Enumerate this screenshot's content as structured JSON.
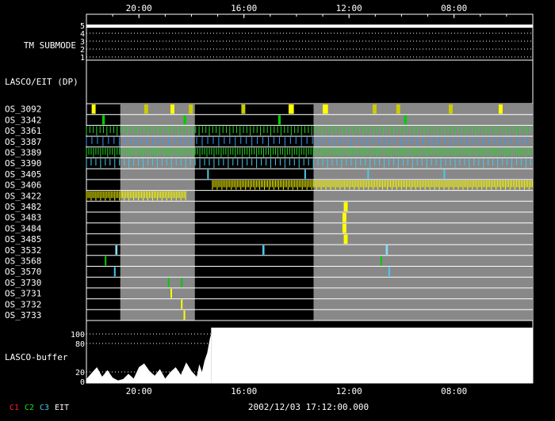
{
  "chart_data": {
    "type": "timeline",
    "footer_time": "2002/12/03 17:12:00.000",
    "x_axis": {
      "direction": "decreasing-left-to-right",
      "range_hours": [
        22,
        5
      ],
      "ticks": [
        {
          "label": "20:00",
          "hour": 20
        },
        {
          "label": "16:00",
          "hour": 16
        },
        {
          "label": "12:00",
          "hour": 12
        },
        {
          "label": "08:00",
          "hour": 8
        }
      ]
    },
    "tm_submode": {
      "label": "TM SUBMODE",
      "ticks": [
        "5",
        "4",
        "3",
        "2",
        "1"
      ],
      "value": 5
    },
    "lasco_eit": {
      "label": "LASCO/EIT (DP)"
    },
    "gray_bands_hours": [
      [
        20.71,
        17.87
      ],
      [
        13.35,
        5.0
      ]
    ],
    "os_rows": [
      {
        "name": "OS_3092",
        "events": [
          [
            21.8,
            0.15,
            "#ffff00"
          ],
          [
            19.8,
            0.15,
            "#cccc00"
          ],
          [
            18.8,
            0.15,
            "#ffff00"
          ],
          [
            18.1,
            0.15,
            "#cccc00"
          ],
          [
            16.1,
            0.15,
            "#cccc00"
          ],
          [
            14.3,
            0.2,
            "#ffff00"
          ],
          [
            13.0,
            0.2,
            "#ffff00"
          ],
          [
            11.1,
            0.15,
            "#cccc00"
          ],
          [
            10.2,
            0.15,
            "#cccc00"
          ],
          [
            8.2,
            0.15,
            "#cccc00"
          ],
          [
            6.3,
            0.15,
            "#ffff00"
          ]
        ]
      },
      {
        "name": "OS_3342",
        "events": [
          [
            21.4,
            0.1,
            "#00cc00"
          ],
          [
            18.3,
            0.1,
            "#00cc00"
          ],
          [
            14.7,
            0.1,
            "#00cc00"
          ],
          [
            9.9,
            0.1,
            "#00cc00"
          ]
        ]
      },
      {
        "name": "OS_3361",
        "pattern": {
          "color": "#22dd22",
          "start": 22.0,
          "end": 5.0,
          "step": 0.13
        }
      },
      {
        "name": "OS_3387",
        "pattern": {
          "color": "#3399ff",
          "start": 22.0,
          "end": 5.0,
          "step": 0.21
        }
      },
      {
        "name": "OS_3389",
        "pattern": {
          "color": "#22dd22",
          "start": 22.0,
          "end": 5.0,
          "step": 0.09
        }
      },
      {
        "name": "OS_3390",
        "pattern": {
          "color": "#44ccee",
          "start": 22.0,
          "end": 5.0,
          "step": 0.18
        }
      },
      {
        "name": "OS_3405",
        "events": [
          [
            17.4,
            0.05,
            "#44ccee"
          ],
          [
            13.7,
            0.05,
            "#44ccee"
          ],
          [
            11.3,
            0.05,
            "#44ccee"
          ],
          [
            8.4,
            0.05,
            "#44ccee"
          ]
        ]
      },
      {
        "name": "OS_3406",
        "pattern": {
          "color": "#ffff00",
          "start": 17.2,
          "end": 5.0,
          "step": 0.06
        }
      },
      {
        "name": "OS_3422",
        "pattern": {
          "color": "#ffff00",
          "start": 22.0,
          "end": 18.2,
          "step": 0.06
        }
      },
      {
        "name": "OS_3482",
        "events": [
          [
            12.2,
            0.15,
            "#ffff00"
          ]
        ]
      },
      {
        "name": "OS_3483",
        "events": [
          [
            12.25,
            0.15,
            "#ffff00"
          ]
        ]
      },
      {
        "name": "OS_3484",
        "events": [
          [
            12.25,
            0.15,
            "#ffff00"
          ]
        ]
      },
      {
        "name": "OS_3485",
        "events": [
          [
            12.2,
            0.15,
            "#ffff00"
          ]
        ]
      },
      {
        "name": "OS_3532",
        "events": [
          [
            20.9,
            0.08,
            "#88ddff"
          ],
          [
            15.3,
            0.08,
            "#44ccee"
          ],
          [
            10.6,
            0.08,
            "#88ddff"
          ]
        ]
      },
      {
        "name": "OS_3568",
        "events": [
          [
            21.3,
            0.05,
            "#00cc00"
          ],
          [
            10.8,
            0.05,
            "#00cc00"
          ]
        ]
      },
      {
        "name": "OS_3570",
        "events": [
          [
            20.95,
            0.05,
            "#44ccee"
          ],
          [
            10.5,
            0.05,
            "#44ccee"
          ]
        ]
      },
      {
        "name": "OS_3730",
        "events": [
          [
            18.9,
            0.05,
            "#00cc00"
          ],
          [
            18.4,
            0.05,
            "#00cc00"
          ]
        ]
      },
      {
        "name": "OS_3731",
        "events": [
          [
            18.8,
            0.05,
            "#ffff00"
          ]
        ]
      },
      {
        "name": "OS_3732",
        "events": [
          [
            18.4,
            0.05,
            "#ffff00"
          ]
        ]
      },
      {
        "name": "OS_3733",
        "events": [
          [
            18.3,
            0.05,
            "#ffff00"
          ]
        ]
      }
    ],
    "buffer": {
      "label": "LASCO-buffer",
      "ticks": [
        "100",
        "80",
        "20",
        "0"
      ],
      "tick_values": [
        100,
        80,
        20,
        0
      ],
      "fill_after_hour": 17.25,
      "profile": [
        [
          22.0,
          5
        ],
        [
          21.8,
          18
        ],
        [
          21.6,
          30
        ],
        [
          21.4,
          10
        ],
        [
          21.2,
          24
        ],
        [
          21.0,
          8
        ],
        [
          20.8,
          2
        ],
        [
          20.6,
          5
        ],
        [
          20.4,
          16
        ],
        [
          20.2,
          6
        ],
        [
          20.0,
          30
        ],
        [
          19.8,
          38
        ],
        [
          19.6,
          22
        ],
        [
          19.4,
          12
        ],
        [
          19.2,
          26
        ],
        [
          19.0,
          6
        ],
        [
          18.8,
          20
        ],
        [
          18.6,
          30
        ],
        [
          18.4,
          14
        ],
        [
          18.2,
          40
        ],
        [
          18.0,
          22
        ],
        [
          17.8,
          10
        ],
        [
          17.7,
          36
        ],
        [
          17.6,
          20
        ],
        [
          17.5,
          44
        ],
        [
          17.4,
          60
        ],
        [
          17.3,
          90
        ],
        [
          17.25,
          100
        ]
      ]
    },
    "legend": [
      {
        "label": "C1",
        "color": "#ff2222"
      },
      {
        "label": "C2",
        "color": "#22dd22"
      },
      {
        "label": "C3",
        "color": "#44ccee"
      },
      {
        "label": "EIT",
        "color": "#ffffff"
      }
    ]
  }
}
